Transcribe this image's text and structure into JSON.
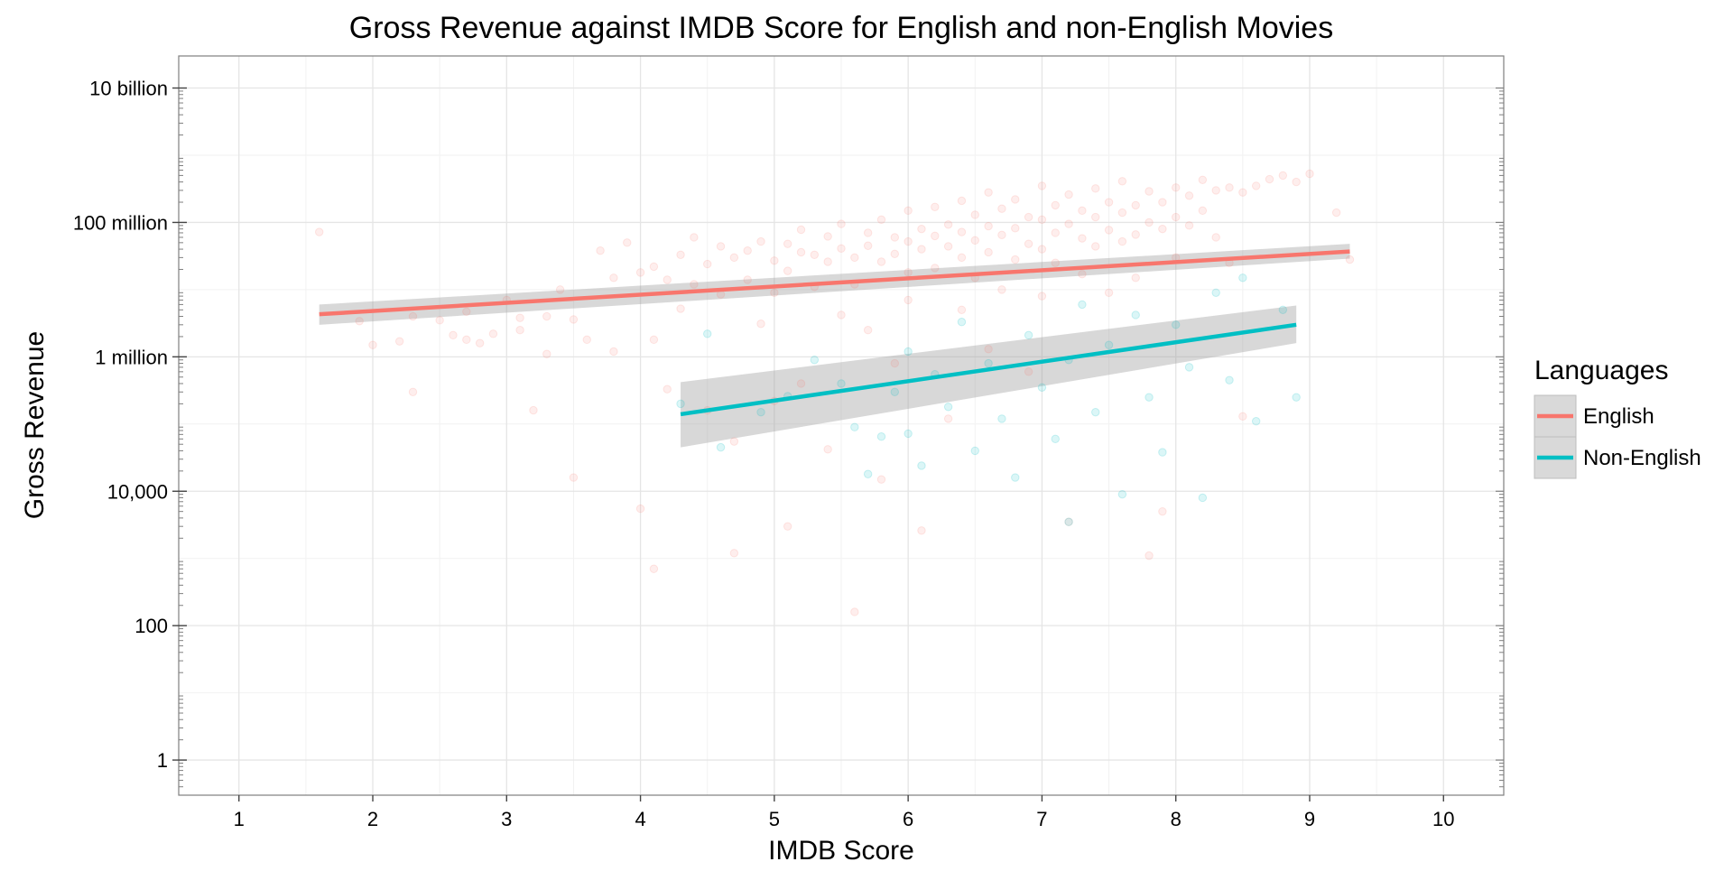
{
  "chart_data": {
    "type": "scatter",
    "title": "Gross Revenue against IMDB Score for English and non-English Movies",
    "xlabel": "IMDB Score",
    "ylabel": "Gross Revenue",
    "x_scale": "linear",
    "y_scale": "log10",
    "xlim": [
      0.55,
      10.45
    ],
    "ylim": [
      0.3,
      30000000000
    ],
    "x_ticks": [
      1,
      2,
      3,
      4,
      5,
      6,
      7,
      8,
      9,
      10
    ],
    "x_tick_labels": [
      "1",
      "2",
      "3",
      "4",
      "5",
      "6",
      "7",
      "8",
      "9",
      "10"
    ],
    "y_ticks": [
      1,
      100,
      10000,
      1000000,
      100000000,
      10000000000
    ],
    "y_tick_labels": [
      "1",
      "100",
      "10,000",
      "1 million",
      "100 million",
      "10 billion"
    ],
    "grid": true,
    "legend": {
      "title": "Languages",
      "position": "right",
      "entries": [
        "English",
        "Non-English"
      ]
    },
    "series": [
      {
        "name": "English",
        "color": "#F8766D",
        "point_opacity": 0.12,
        "trend": {
          "x": [
            1.6,
            9.3
          ],
          "y": [
            4300000,
            37000000
          ],
          "ci_lower": [
            3000000,
            29000000
          ],
          "ci_upper": [
            6000000,
            48000000
          ]
        },
        "points": [
          [
            1.6,
            72000000
          ],
          [
            1.9,
            3400000
          ],
          [
            2.0,
            1500000
          ],
          [
            2.2,
            1700000
          ],
          [
            2.3,
            4000000
          ],
          [
            2.3,
            300000
          ],
          [
            2.5,
            3500000
          ],
          [
            2.6,
            2100000
          ],
          [
            2.7,
            4700000
          ],
          [
            2.7,
            1800000
          ],
          [
            2.8,
            1600000
          ],
          [
            2.9,
            2200000
          ],
          [
            3.0,
            7000000
          ],
          [
            3.1,
            2500000
          ],
          [
            3.1,
            3800000
          ],
          [
            3.2,
            160000
          ],
          [
            3.3,
            4000000
          ],
          [
            3.3,
            1100000
          ],
          [
            3.4,
            10000000
          ],
          [
            3.5,
            3600000
          ],
          [
            3.5,
            16000
          ],
          [
            3.6,
            1800000
          ],
          [
            3.7,
            38000000
          ],
          [
            3.8,
            15000000
          ],
          [
            3.8,
            1200000
          ],
          [
            3.9,
            50000000
          ],
          [
            4.0,
            18000000
          ],
          [
            4.0,
            5500
          ],
          [
            4.1,
            22000000
          ],
          [
            4.1,
            1800000
          ],
          [
            4.1,
            700
          ],
          [
            4.2,
            14000000
          ],
          [
            4.2,
            330000
          ],
          [
            4.3,
            33000000
          ],
          [
            4.3,
            5200000
          ],
          [
            4.4,
            60000000
          ],
          [
            4.4,
            12000000
          ],
          [
            4.5,
            24000000
          ],
          [
            4.5,
            160000
          ],
          [
            4.6,
            44000000
          ],
          [
            4.6,
            8500000
          ],
          [
            4.7,
            30000000
          ],
          [
            4.7,
            55000
          ],
          [
            4.7,
            1200
          ],
          [
            4.8,
            38000000
          ],
          [
            4.8,
            14000000
          ],
          [
            4.9,
            52000000
          ],
          [
            4.9,
            3100000
          ],
          [
            5.0,
            27000000
          ],
          [
            5.0,
            9000000
          ],
          [
            5.0,
            220000
          ],
          [
            5.1,
            48000000
          ],
          [
            5.1,
            19000000
          ],
          [
            5.1,
            3000
          ],
          [
            5.2,
            78000000
          ],
          [
            5.2,
            36000000
          ],
          [
            5.2,
            400000
          ],
          [
            5.3,
            33000000
          ],
          [
            5.3,
            11000000
          ],
          [
            5.4,
            62000000
          ],
          [
            5.4,
            26000000
          ],
          [
            5.4,
            42000
          ],
          [
            5.5,
            95000000
          ],
          [
            5.5,
            41000000
          ],
          [
            5.5,
            4200000
          ],
          [
            5.6,
            30000000
          ],
          [
            5.6,
            12000000
          ],
          [
            5.6,
            160
          ],
          [
            5.7,
            70000000
          ],
          [
            5.7,
            45000000
          ],
          [
            5.7,
            2500000
          ],
          [
            5.8,
            110000000
          ],
          [
            5.8,
            26000000
          ],
          [
            5.8,
            15000
          ],
          [
            5.9,
            60000000
          ],
          [
            5.9,
            34000000
          ],
          [
            5.9,
            800000
          ],
          [
            6.0,
            150000000
          ],
          [
            6.0,
            52000000
          ],
          [
            6.0,
            18000000
          ],
          [
            6.0,
            7000000
          ],
          [
            6.1,
            80000000
          ],
          [
            6.1,
            40000000
          ],
          [
            6.1,
            2600
          ],
          [
            6.2,
            170000000
          ],
          [
            6.2,
            63000000
          ],
          [
            6.2,
            21000000
          ],
          [
            6.3,
            93000000
          ],
          [
            6.3,
            44000000
          ],
          [
            6.3,
            120000
          ],
          [
            6.4,
            210000000
          ],
          [
            6.4,
            72000000
          ],
          [
            6.4,
            30000000
          ],
          [
            6.4,
            5000000
          ],
          [
            6.5,
            130000000
          ],
          [
            6.5,
            54000000
          ],
          [
            6.5,
            15000000
          ],
          [
            6.6,
            280000000
          ],
          [
            6.6,
            88000000
          ],
          [
            6.6,
            36000000
          ],
          [
            6.6,
            1300000
          ],
          [
            6.7,
            160000000
          ],
          [
            6.7,
            65000000
          ],
          [
            6.7,
            10000000
          ],
          [
            6.8,
            220000000
          ],
          [
            6.8,
            82000000
          ],
          [
            6.8,
            28000000
          ],
          [
            6.9,
            120000000
          ],
          [
            6.9,
            48000000
          ],
          [
            6.9,
            600000
          ],
          [
            7.0,
            350000000
          ],
          [
            7.0,
            110000000
          ],
          [
            7.0,
            40000000
          ],
          [
            7.0,
            8000000
          ],
          [
            7.1,
            180000000
          ],
          [
            7.1,
            70000000
          ],
          [
            7.1,
            25000000
          ],
          [
            7.2,
            260000000
          ],
          [
            7.2,
            95000000
          ],
          [
            7.2,
            3500
          ],
          [
            7.3,
            150000000
          ],
          [
            7.3,
            58000000
          ],
          [
            7.3,
            17000000
          ],
          [
            7.4,
            320000000
          ],
          [
            7.4,
            120000000
          ],
          [
            7.4,
            44000000
          ],
          [
            7.5,
            200000000
          ],
          [
            7.5,
            77000000
          ],
          [
            7.5,
            9000000
          ],
          [
            7.6,
            410000000
          ],
          [
            7.6,
            140000000
          ],
          [
            7.6,
            52000000
          ],
          [
            7.7,
            180000000
          ],
          [
            7.7,
            66000000
          ],
          [
            7.7,
            15000000
          ],
          [
            7.8,
            290000000
          ],
          [
            7.8,
            100000000
          ],
          [
            7.8,
            1100
          ],
          [
            7.9,
            200000000
          ],
          [
            7.9,
            80000000
          ],
          [
            7.9,
            5000
          ],
          [
            8.0,
            330000000
          ],
          [
            8.0,
            120000000
          ],
          [
            8.0,
            30000000
          ],
          [
            8.1,
            250000000
          ],
          [
            8.1,
            90000000
          ],
          [
            8.2,
            430000000
          ],
          [
            8.2,
            150000000
          ],
          [
            8.3,
            300000000
          ],
          [
            8.3,
            60000000
          ],
          [
            8.4,
            330000000
          ],
          [
            8.4,
            25000000
          ],
          [
            8.5,
            280000000
          ],
          [
            8.5,
            130000
          ],
          [
            8.6,
            350000000
          ],
          [
            8.7,
            440000000
          ],
          [
            8.8,
            500000000
          ],
          [
            8.9,
            400000000
          ],
          [
            9.0,
            530000000
          ],
          [
            9.2,
            140000000
          ],
          [
            9.3,
            28000000
          ]
        ]
      },
      {
        "name": "Non-English",
        "color": "#00BFC4",
        "point_opacity": 0.14,
        "trend": {
          "x": [
            4.3,
            8.9
          ],
          "y": [
            140000,
            3000000
          ],
          "ci_lower": [
            45000,
            1600000
          ],
          "ci_upper": [
            420000,
            5800000
          ]
        },
        "points": [
          [
            4.3,
            200000
          ],
          [
            4.5,
            2200000
          ],
          [
            4.6,
            45000
          ],
          [
            4.9,
            150000
          ],
          [
            5.1,
            260000
          ],
          [
            5.3,
            900000
          ],
          [
            5.5,
            400000
          ],
          [
            5.6,
            90000
          ],
          [
            5.7,
            18000
          ],
          [
            5.8,
            65000
          ],
          [
            5.9,
            300000
          ],
          [
            6.0,
            72000
          ],
          [
            6.0,
            1200000
          ],
          [
            6.1,
            24000
          ],
          [
            6.2,
            550000
          ],
          [
            6.3,
            180000
          ],
          [
            6.4,
            3300000
          ],
          [
            6.5,
            40000
          ],
          [
            6.6,
            800000
          ],
          [
            6.7,
            120000
          ],
          [
            6.8,
            16000
          ],
          [
            6.9,
            2100000
          ],
          [
            7.0,
            350000
          ],
          [
            7.1,
            60000
          ],
          [
            7.2,
            900000
          ],
          [
            7.2,
            3500
          ],
          [
            7.3,
            6000000
          ],
          [
            7.4,
            150000
          ],
          [
            7.5,
            1500000
          ],
          [
            7.6,
            9000
          ],
          [
            7.7,
            4200000
          ],
          [
            7.8,
            250000
          ],
          [
            7.9,
            38000
          ],
          [
            8.0,
            3000000
          ],
          [
            8.1,
            700000
          ],
          [
            8.2,
            8000
          ],
          [
            8.3,
            9000000
          ],
          [
            8.4,
            450000
          ],
          [
            8.5,
            15000000
          ],
          [
            8.6,
            110000
          ],
          [
            8.8,
            5000000
          ],
          [
            8.9,
            250000
          ]
        ]
      }
    ]
  }
}
